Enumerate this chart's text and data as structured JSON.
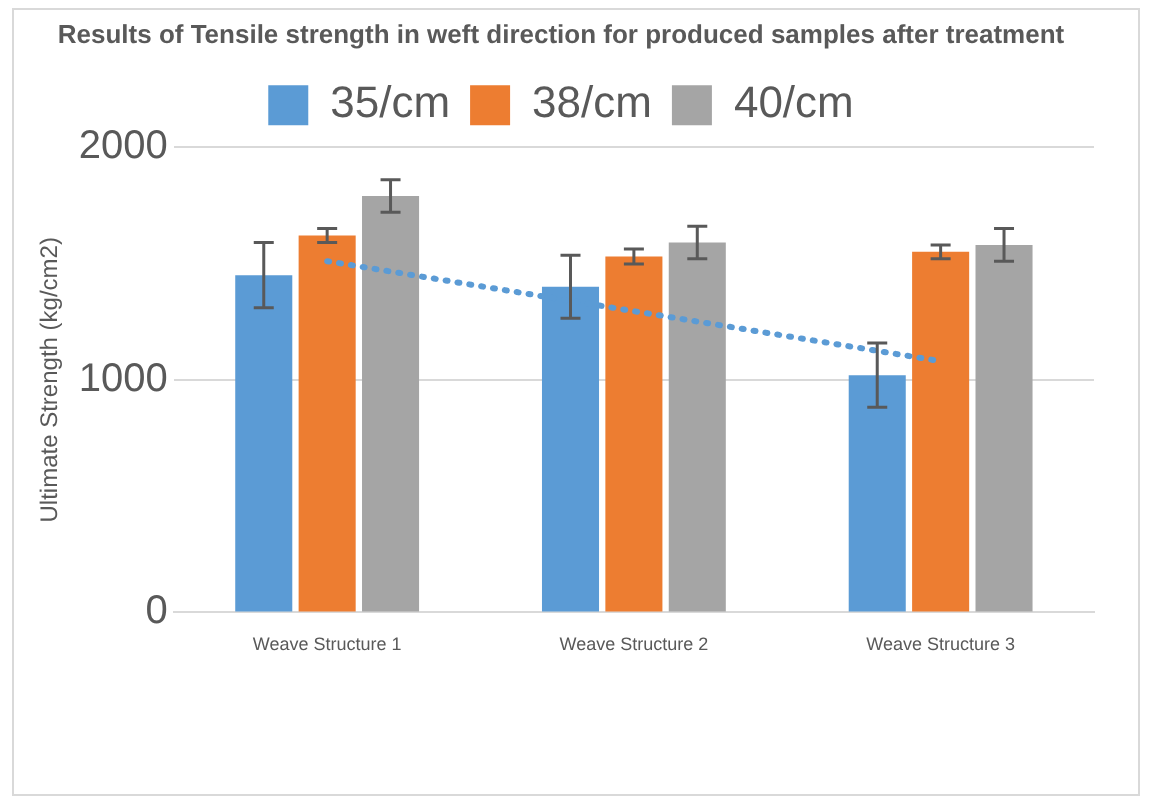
{
  "chart_data": {
    "type": "bar",
    "title": "Results of Tensile strength in weft direction for produced samples after treatment",
    "ylabel": "Ultimate Strength (kg/cm2)",
    "categories": [
      "Weave Structure 1",
      "Weave Structure 2",
      "Weave Structure 3"
    ],
    "series": [
      {
        "name": "35/cm",
        "color": "#5b9bd5",
        "values": [
          1450,
          1400,
          1020
        ],
        "errors": [
          140,
          135,
          138
        ]
      },
      {
        "name": "38/cm",
        "color": "#ed7d31",
        "values": [
          1620,
          1530,
          1550
        ],
        "errors": [
          30,
          32,
          30
        ]
      },
      {
        "name": "40/cm",
        "color": "#a5a5a5",
        "values": [
          1790,
          1590,
          1580
        ],
        "errors": [
          70,
          70,
          70
        ]
      },
      {
        "type": "line",
        "x": [
          "Weave Structure 1",
          "Weave Structure 3"
        ],
        "color": "#5b9bd5",
        "values": [
          1510,
          1080
        ],
        "line_style": "dotted"
      }
    ],
    "ylim": [
      0,
      2000
    ],
    "yticks": [
      0,
      1000,
      2000
    ],
    "grid": "y",
    "legend": "top"
  }
}
